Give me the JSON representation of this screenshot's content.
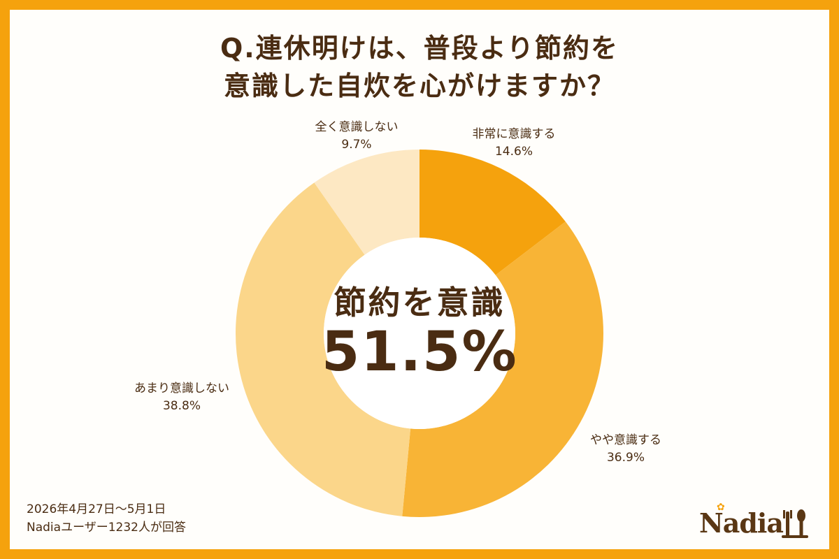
{
  "title_lines": [
    "Q.連休明けは、普段より節約を",
    "意識した自炊を心がけますか？"
  ],
  "center": {
    "label": "節約を意識",
    "value": "51.5%"
  },
  "footer": {
    "period": "2026年4月27日〜5月1日",
    "respondents": "Nadiaユーザー1232人が回答"
  },
  "logo": {
    "text": "Nadia"
  },
  "colors": {
    "frame": "#F5A20D",
    "text": "#4A2C12"
  },
  "chart_data": {
    "type": "pie",
    "donut": true,
    "slices": [
      {
        "label": "非常に意識する",
        "percent": "14.6%",
        "value": 14.6,
        "color": "#F5A20D"
      },
      {
        "label": "やや意識する",
        "percent": "36.9%",
        "value": 36.9,
        "color": "#F8B436"
      },
      {
        "label": "あまり意識しない",
        "percent": "38.8%",
        "value": 38.8,
        "color": "#FBD68A"
      },
      {
        "label": "全く意識しない",
        "percent": "9.7%",
        "value": 9.7,
        "color": "#FDE8C3"
      }
    ]
  }
}
